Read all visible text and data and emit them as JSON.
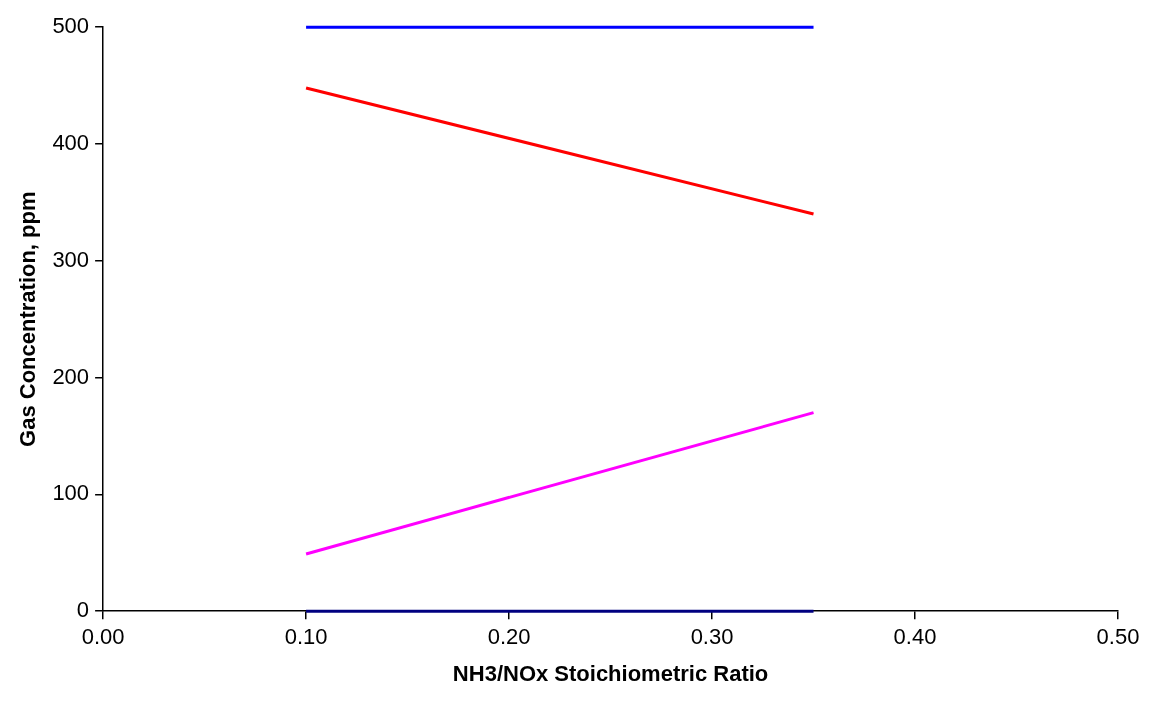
{
  "chart_data": {
    "type": "line",
    "xlabel": "NH3/NOx Stoichiometric Ratio",
    "ylabel": "Gas Concentration, ppm",
    "x": [
      0.1,
      0.35
    ],
    "xlim": [
      0,
      0.5
    ],
    "xticks": [
      {
        "value": 0,
        "label": "0.00"
      },
      {
        "value": 0.1,
        "label": "0.10"
      },
      {
        "value": 0.2,
        "label": "0.20"
      },
      {
        "value": 0.3,
        "label": "0.30"
      },
      {
        "value": 0.4,
        "label": "0.40"
      },
      {
        "value": 0.5,
        "label": "0.50"
      }
    ],
    "ylim": [
      0,
      500
    ],
    "yticks": [
      0,
      100,
      200,
      300,
      400,
      500
    ],
    "grid": false,
    "legend": false,
    "marker": "none",
    "line_style": "solid",
    "series": [
      {
        "color": "#0000ff",
        "values": [
          500,
          500
        ]
      },
      {
        "color": "#ff0000",
        "values": [
          448,
          340
        ]
      },
      {
        "color": "#ff00ff",
        "values": [
          49,
          170
        ]
      },
      {
        "color": "#000080",
        "values": [
          0,
          0
        ]
      }
    ]
  }
}
